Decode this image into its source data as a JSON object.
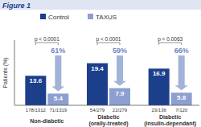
{
  "chart_data": {
    "type": "bar",
    "title": "Figure 1",
    "y_label": "Patients (%)",
    "categories": [
      "Non-diabetic",
      "Diabetic (orally-treated)",
      "Diabetic (insulin-dependant)"
    ],
    "series": [
      {
        "name": "Control",
        "color": "#1c3f8c",
        "values": [
          13.6,
          19.4,
          16.9
        ],
        "counts": [
          "178/1312",
          "54/279",
          "23/136"
        ]
      },
      {
        "name": "TAXUS",
        "color": "#8c9fd0",
        "values": [
          5.4,
          7.9,
          5.8
        ],
        "counts": [
          "71/1319",
          "22/279",
          "7/120"
        ]
      }
    ],
    "p_values": [
      "p < 0.0001",
      "p < 0.0001",
      "p = 0.0063"
    ],
    "reductions": [
      "61%",
      "59%",
      "66%"
    ],
    "ylim": [
      0,
      30
    ],
    "tick_labels": false,
    "data_labels": true,
    "legend": "top"
  }
}
